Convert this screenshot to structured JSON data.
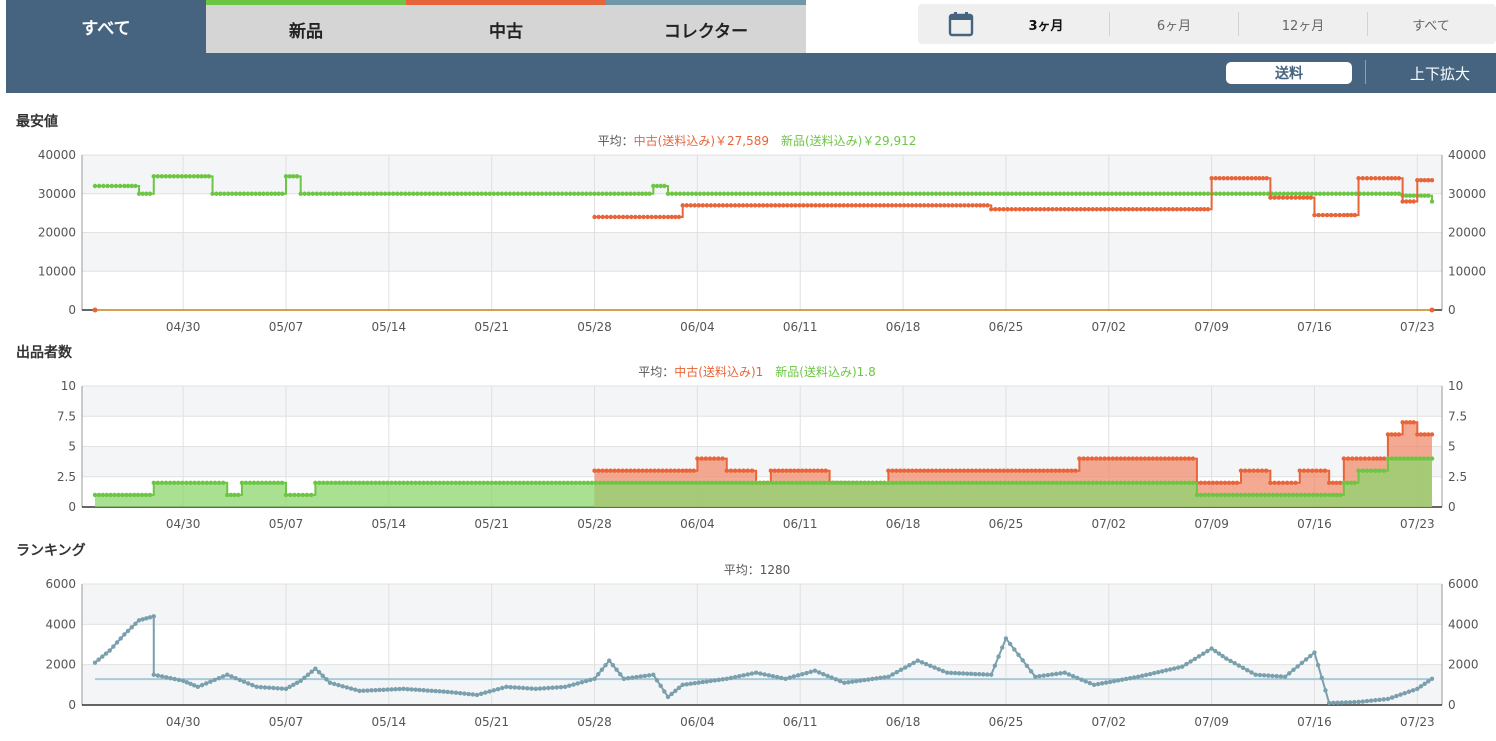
{
  "condition_tabs": [
    {
      "label": "すべて",
      "color": "#466480"
    },
    {
      "label": "新品",
      "color": "#6cc644"
    },
    {
      "label": "中古",
      "color": "#e8653a"
    },
    {
      "label": "コレクター",
      "color": "#6f97a8"
    }
  ],
  "range_buttons": [
    "3ヶ月",
    "6ヶ月",
    "12ヶ月",
    "すべて"
  ],
  "range_selected": "3ヶ月",
  "shipping_button": "送料",
  "zoom_button": "上下拡大",
  "colors": {
    "new": "#6cc644",
    "used": "#e8653a",
    "ranking": "#7aa0ae",
    "rank_avg": "#a9c9d6"
  },
  "x_tick_labels": [
    "04/30",
    "05/07",
    "05/14",
    "05/21",
    "05/28",
    "06/04",
    "06/11",
    "06/18",
    "06/25",
    "07/02",
    "07/09",
    "07/16",
    "07/23"
  ],
  "chart_data": [
    {
      "type": "line",
      "title": "最安値",
      "subtitle": {
        "prefix": "平均：",
        "used": "中古(送料込み)￥27,589",
        "new": "新品(送料込み)￥29,912"
      },
      "x_range": [
        "04/24",
        "07/24"
      ],
      "ylim": [
        0,
        40000
      ],
      "y_ticks": [
        "40000",
        "30000",
        "20000",
        "10000",
        "0"
      ],
      "series": [
        {
          "name": "新品(送料込み)",
          "points": [
            [
              "04/24",
              32000
            ],
            [
              "04/26",
              32000
            ],
            [
              "04/27",
              30000
            ],
            [
              "04/28",
              34500
            ],
            [
              "05/01",
              34500
            ],
            [
              "05/02",
              30000
            ],
            [
              "05/06",
              30000
            ],
            [
              "05/07",
              34500
            ],
            [
              "05/08",
              30000
            ],
            [
              "05/31",
              30000
            ],
            [
              "06/01",
              32000
            ],
            [
              "06/02",
              30000
            ],
            [
              "07/21",
              30000
            ],
            [
              "07/22",
              29500
            ],
            [
              "07/23",
              29500
            ],
            [
              "07/24",
              28000
            ]
          ]
        },
        {
          "name": "中古(送料込み)",
          "points": [
            [
              "05/28",
              24000
            ],
            [
              "06/02",
              24000
            ],
            [
              "06/03",
              27000
            ],
            [
              "06/23",
              27000
            ],
            [
              "06/24",
              26000
            ],
            [
              "06/29",
              26000
            ],
            [
              "07/08",
              26000
            ],
            [
              "07/09",
              34000
            ],
            [
              "07/12",
              34000
            ],
            [
              "07/13",
              29000
            ],
            [
              "07/15",
              29000
            ],
            [
              "07/16",
              24500
            ],
            [
              "07/18",
              24500
            ],
            [
              "07/19",
              34000
            ],
            [
              "07/21",
              34000
            ],
            [
              "07/22",
              28000
            ],
            [
              "07/23",
              33500
            ],
            [
              "07/24",
              33500
            ]
          ]
        }
      ]
    },
    {
      "type": "area",
      "title": "出品者数",
      "subtitle": {
        "prefix": "平均：",
        "used": "中古(送料込み)1",
        "new": "新品(送料込み)1.8"
      },
      "x_range": [
        "04/24",
        "07/24"
      ],
      "ylim": [
        0,
        10
      ],
      "y_ticks": [
        "10",
        "7.5",
        "5",
        "2.5",
        "0"
      ],
      "series": [
        {
          "name": "中古(送料込み)",
          "points": [
            [
              "05/28",
              3
            ],
            [
              "06/03",
              3
            ],
            [
              "06/04",
              4
            ],
            [
              "06/06",
              3
            ],
            [
              "06/08",
              2
            ],
            [
              "06/09",
              3
            ],
            [
              "06/13",
              2
            ],
            [
              "06/17",
              3
            ],
            [
              "06/30",
              4
            ],
            [
              "07/02",
              4
            ],
            [
              "07/08",
              2
            ],
            [
              "07/11",
              3
            ],
            [
              "07/13",
              2
            ],
            [
              "07/15",
              3
            ],
            [
              "07/17",
              2
            ],
            [
              "07/18",
              4
            ],
            [
              "07/20",
              4
            ],
            [
              "07/21",
              6
            ],
            [
              "07/22",
              7
            ],
            [
              "07/23",
              6
            ],
            [
              "07/24",
              6
            ]
          ]
        },
        {
          "name": "新品(送料込み)",
          "points": [
            [
              "04/24",
              1
            ],
            [
              "04/28",
              2
            ],
            [
              "05/03",
              1
            ],
            [
              "05/04",
              2
            ],
            [
              "05/07",
              1
            ],
            [
              "05/09",
              2
            ],
            [
              "07/08",
              1
            ],
            [
              "07/17",
              1
            ],
            [
              "07/18",
              2
            ],
            [
              "07/19",
              3
            ],
            [
              "07/21",
              4
            ],
            [
              "07/24",
              4
            ]
          ]
        }
      ]
    },
    {
      "type": "line",
      "title": "ランキング",
      "subtitle": {
        "prefix": "平均：",
        "value": "1280"
      },
      "x_range": [
        "04/24",
        "07/24"
      ],
      "ylim": [
        0,
        6000
      ],
      "y_ticks": [
        "6000",
        "4000",
        "2000",
        "0"
      ],
      "average": 1280,
      "series": [
        {
          "name": "ranking",
          "points": [
            [
              "04/24",
              2100
            ],
            [
              "04/25",
              2700
            ],
            [
              "04/26",
              3500
            ],
            [
              "04/27",
              4200
            ],
            [
              "04/28",
              4400
            ],
            [
              "04/28",
              1500
            ],
            [
              "04/30",
              1200
            ],
            [
              "05/01",
              900
            ],
            [
              "05/03",
              1500
            ],
            [
              "05/05",
              900
            ],
            [
              "05/07",
              800
            ],
            [
              "05/08",
              1200
            ],
            [
              "05/09",
              1800
            ],
            [
              "05/10",
              1100
            ],
            [
              "05/12",
              700
            ],
            [
              "05/15",
              800
            ],
            [
              "05/18",
              650
            ],
            [
              "05/20",
              500
            ],
            [
              "05/22",
              900
            ],
            [
              "05/24",
              800
            ],
            [
              "05/26",
              900
            ],
            [
              "05/28",
              1300
            ],
            [
              "05/29",
              2200
            ],
            [
              "05/30",
              1300
            ],
            [
              "06/01",
              1500
            ],
            [
              "06/02",
              400
            ],
            [
              "06/03",
              1000
            ],
            [
              "06/06",
              1300
            ],
            [
              "06/08",
              1600
            ],
            [
              "06/10",
              1300
            ],
            [
              "06/12",
              1700
            ],
            [
              "06/14",
              1100
            ],
            [
              "06/17",
              1400
            ],
            [
              "06/19",
              2200
            ],
            [
              "06/21",
              1600
            ],
            [
              "06/24",
              1500
            ],
            [
              "06/25",
              3300
            ],
            [
              "06/27",
              1400
            ],
            [
              "06/29",
              1600
            ],
            [
              "07/01",
              1000
            ],
            [
              "07/04",
              1400
            ],
            [
              "07/07",
              1900
            ],
            [
              "07/09",
              2800
            ],
            [
              "07/10",
              2300
            ],
            [
              "07/12",
              1500
            ],
            [
              "07/14",
              1400
            ],
            [
              "07/16",
              2600
            ],
            [
              "07/17",
              100
            ],
            [
              "07/19",
              150
            ],
            [
              "07/21",
              300
            ],
            [
              "07/23",
              800
            ],
            [
              "07/24",
              1300
            ]
          ]
        }
      ]
    }
  ]
}
